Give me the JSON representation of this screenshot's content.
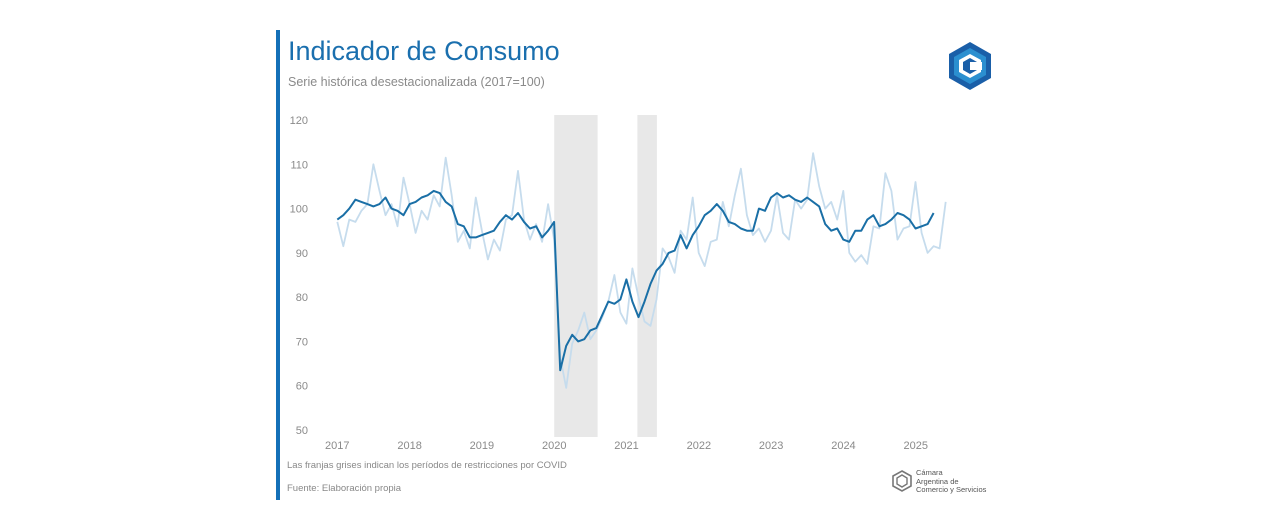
{
  "header": {
    "title": "Indicador de Consumo",
    "subtitle": "Serie histórica desestacionalizada (2017=100)"
  },
  "footer": {
    "note": "Las franjas grises indican los períodos de restricciones por COVID",
    "source": "Fuente: Elaboración propia",
    "org_lines": [
      "Cámara",
      "Argentina de",
      "Comercio y Servicios"
    ]
  },
  "colors": {
    "accent": "#1470b8",
    "main_line": "#1a6fa6",
    "light_line": "#c6dced",
    "covid_band": "#e8e8e8"
  },
  "chart_data": {
    "type": "line",
    "title": "Indicador de Consumo",
    "subtitle": "Serie histórica desestacionalizada (2017=100)",
    "ylim": [
      50,
      120
    ],
    "yticks": [
      50,
      60,
      70,
      80,
      90,
      100,
      110,
      120
    ],
    "xlim": [
      2016.83,
      2025.75
    ],
    "xticks": [
      "2017",
      "2018",
      "2019",
      "2020",
      "2021",
      "2022",
      "2023",
      "2024",
      "2025"
    ],
    "grid": false,
    "shaded_periods": [
      [
        2020.0,
        2020.6
      ],
      [
        2021.15,
        2021.42
      ]
    ],
    "series": [
      {
        "style": "dark",
        "x_start": 2017.0,
        "step": 0.0833,
        "values": [
          97.5,
          98.5,
          100,
          102,
          101.5,
          101,
          100.5,
          101,
          102.5,
          100,
          99.5,
          98.5,
          101,
          101.5,
          102.5,
          103,
          104,
          103.5,
          101.5,
          100.5,
          96.5,
          96,
          93.5,
          93.5,
          94,
          94.5,
          95,
          97,
          98.5,
          97.5,
          99,
          97,
          95.5,
          96,
          93.5,
          95,
          97,
          63.5,
          69,
          71.5,
          70,
          70.5,
          72.5,
          73,
          76,
          79,
          78.5,
          79.5,
          84,
          79,
          75.5,
          79,
          83,
          86,
          87.5,
          90,
          90.5,
          94,
          91,
          94,
          96,
          98.5,
          99.5,
          101,
          99.5,
          97,
          96.5,
          95.5,
          95,
          95,
          100,
          99.5,
          102.5,
          103.5,
          102.5,
          103,
          102,
          101.5,
          102.5,
          101.5,
          100.5,
          96.5,
          95,
          95.5,
          93,
          92.5,
          95,
          95,
          97.5,
          98.5,
          96,
          96.5,
          97.5,
          99,
          98.5,
          97.5,
          95.5,
          96,
          96.5,
          99
        ]
      },
      {
        "style": "light",
        "x_start": 2017.0,
        "step": 0.0833,
        "values": [
          97,
          91.5,
          97.5,
          97,
          99.5,
          101,
          110,
          104,
          98.5,
          101,
          96,
          107,
          101,
          94.5,
          99.5,
          97.5,
          103,
          100.5,
          111.5,
          103,
          92.5,
          95,
          91,
          102.5,
          95,
          88.5,
          93,
          90.5,
          97.5,
          98.5,
          108.5,
          97.5,
          93,
          96.5,
          92.5,
          101,
          93,
          66.5,
          59.5,
          69.5,
          72.5,
          76.5,
          70.5,
          72.5,
          75.5,
          79,
          85,
          76.5,
          74,
          86.5,
          80,
          74.5,
          73.5,
          79.5,
          91,
          89,
          85.5,
          95,
          93,
          102.5,
          90,
          87,
          92.5,
          93,
          101.5,
          96,
          103,
          109,
          98.5,
          94,
          95.5,
          92.5,
          95,
          103,
          94.5,
          93,
          102,
          100,
          102,
          112.5,
          105,
          100,
          101.5,
          97.5,
          104,
          90,
          88,
          89.5,
          87.5,
          96,
          95.5,
          108,
          104,
          93,
          95.5,
          96,
          106,
          94.5,
          90,
          91.5,
          91,
          101.5
        ]
      }
    ]
  }
}
